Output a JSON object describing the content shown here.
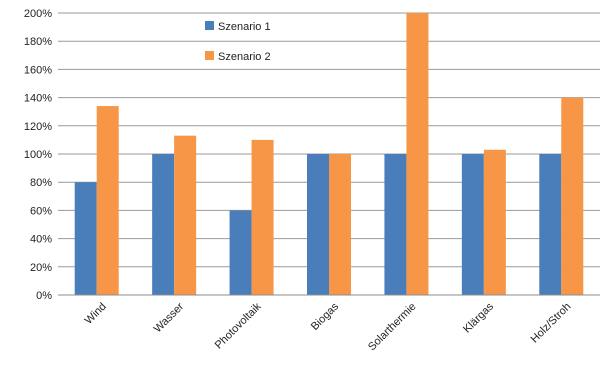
{
  "chart_data": {
    "type": "bar",
    "categories": [
      "Wind",
      "Wasser",
      "Photovoltaik",
      "Biogas",
      "Solarthermie",
      "Klärgas",
      "Holz/Stroh"
    ],
    "series": [
      {
        "name": "Szenario 1",
        "color": "#4a7ebb",
        "values": [
          80,
          100,
          60,
          100,
          100,
          100,
          100
        ]
      },
      {
        "name": "Szenario 2",
        "color": "#f79646",
        "values": [
          134,
          113,
          110,
          100,
          200,
          103,
          140
        ]
      }
    ],
    "y_ticks": [
      "0%",
      "20%",
      "40%",
      "60%",
      "80%",
      "100%",
      "120%",
      "140%",
      "160%",
      "180%",
      "200%"
    ],
    "ylim": [
      0,
      200
    ],
    "y_step": 20,
    "grid": true,
    "legend_position": "top-center"
  }
}
